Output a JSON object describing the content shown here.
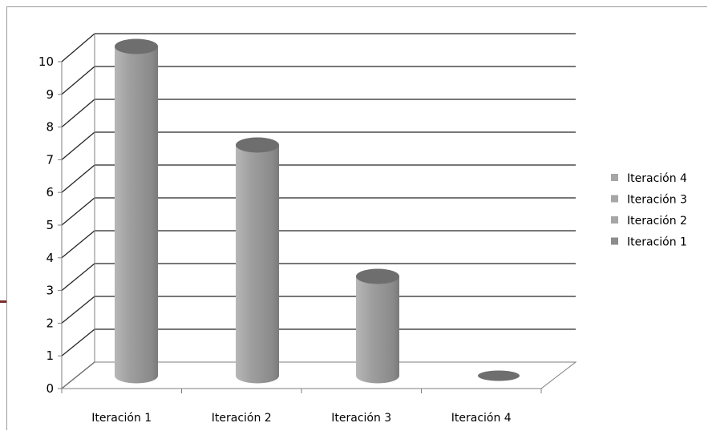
{
  "chart_data": {
    "type": "bar",
    "style": "3d-cylinder",
    "categories": [
      "Iteración 1",
      "Iteración 2",
      "Iteración 3",
      "Iteración 4"
    ],
    "values": [
      10,
      7,
      3,
      0
    ],
    "ylim": [
      0,
      10
    ],
    "yticks": [
      "0",
      "1",
      "2",
      "3",
      "4",
      "5",
      "6",
      "7",
      "8",
      "9",
      "10"
    ],
    "grid": true,
    "legend_position": "right",
    "legend": [
      "Iteración 4",
      "Iteración 3",
      "Iteración 2",
      "Iteración 1"
    ],
    "colors": {
      "bar_side": "#9b9b9b",
      "bar_light": "#c9c9c9",
      "bar_dark": "#6e6e6e",
      "legend_swatches": [
        "#a6a6a6",
        "#a6a6a6",
        "#a6a6a6",
        "#8c8c8c"
      ],
      "grid": "#262626",
      "axis": "#7f7f7f"
    }
  }
}
